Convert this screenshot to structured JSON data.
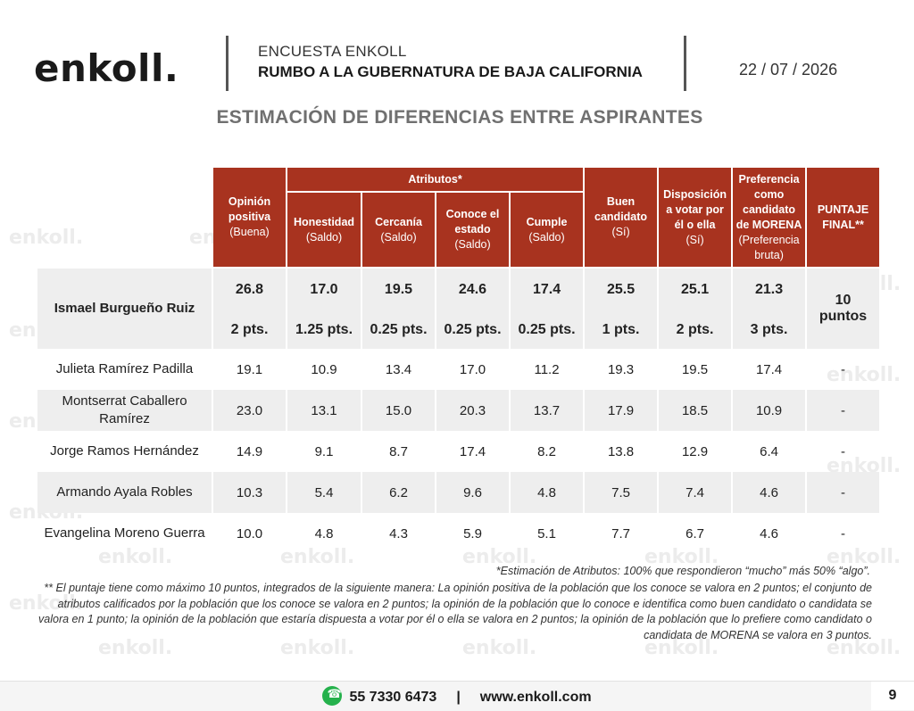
{
  "header": {
    "logo": "enkoll.",
    "survey_name": "ENCUESTA ENKOLL",
    "survey_title": "RUMBO A LA GUBERNATURA DE BAJA CALIFORNIA",
    "date": "22 / 07 / 2026"
  },
  "page_title": "ESTIMACIÓN DE DIFERENCIAS ENTRE ASPIRANTES",
  "watermark": "enkoll.",
  "table": {
    "group_header": "Atributos*",
    "columns": {
      "opinion": {
        "label": "Opinión positiva",
        "sub": "(Buena)"
      },
      "honestidad": {
        "label": "Honestidad",
        "sub": "(Saldo)"
      },
      "cercania": {
        "label": "Cercanía",
        "sub": "(Saldo)"
      },
      "conoce": {
        "label": "Conoce el estado",
        "sub": "(Saldo)"
      },
      "cumple": {
        "label": "Cumple",
        "sub": "(Saldo)"
      },
      "buen": {
        "label": "Buen candidato",
        "sub": "(Sí)"
      },
      "disposicion": {
        "label": "Disposición a votar por él o ella",
        "sub": "(Sí)"
      },
      "preferencia": {
        "label": "Preferencia como candidato de MORENA",
        "sub": "(Preferencia bruta)"
      },
      "puntaje": {
        "label": "PUNTAJE FINAL**",
        "sub": ""
      }
    },
    "leader": {
      "name": "Ismael Burgueño Ruiz",
      "values": [
        "26.8",
        "17.0",
        "19.5",
        "24.6",
        "17.4",
        "25.5",
        "25.1",
        "21.3"
      ],
      "points": [
        "2 pts.",
        "1.25 pts.",
        "0.25 pts.",
        "0.25 pts.",
        "0.25 pts.",
        "1 pts.",
        "2 pts.",
        "3 pts."
      ],
      "final": "10 puntos"
    },
    "rows": [
      {
        "name": "Julieta Ramírez Padilla",
        "values": [
          "19.1",
          "10.9",
          "13.4",
          "17.0",
          "11.2",
          "19.3",
          "19.5",
          "17.4"
        ],
        "final": "-"
      },
      {
        "name": "Montserrat Caballero Ramírez",
        "values": [
          "23.0",
          "13.1",
          "15.0",
          "20.3",
          "13.7",
          "17.9",
          "18.5",
          "10.9"
        ],
        "final": "-"
      },
      {
        "name": "Jorge Ramos Hernández",
        "values": [
          "14.9",
          "9.1",
          "8.7",
          "17.4",
          "8.2",
          "13.8",
          "12.9",
          "6.4"
        ],
        "final": "-"
      },
      {
        "name": "Armando Ayala Robles",
        "values": [
          "10.3",
          "5.4",
          "6.2",
          "9.6",
          "4.8",
          "7.5",
          "7.4",
          "4.6"
        ],
        "final": "-"
      },
      {
        "name": "Evangelina Moreno Guerra",
        "values": [
          "10.0",
          "4.8",
          "4.3",
          "5.9",
          "5.1",
          "7.7",
          "6.7",
          "4.6"
        ],
        "final": "-"
      }
    ]
  },
  "footnotes": {
    "attributes": "*Estimación de Atributos: 100% que respondieron “mucho” más 50% “algo”.",
    "score": "** El puntaje tiene como máximo 10 puntos, integrados de la siguiente manera: La opinión positiva de la población que los conoce se valora en 2 puntos; el conjunto de atributos calificados por la población que los conoce se valora en 2 puntos; la opinión de la población que lo conoce e identifica como buen candidato o candidata se valora en 1 punto; la opinión de la población que estaría dispuesta a votar por él o ella se valora en 2 puntos; la opinión de la población que lo prefiere como candidato o candidata de MORENA se valora en 3 puntos."
  },
  "footer": {
    "icon": "whatsapp-icon",
    "phone": "55 7330 6473",
    "separator": "|",
    "website": "www.enkoll.com",
    "page_number": "9"
  }
}
